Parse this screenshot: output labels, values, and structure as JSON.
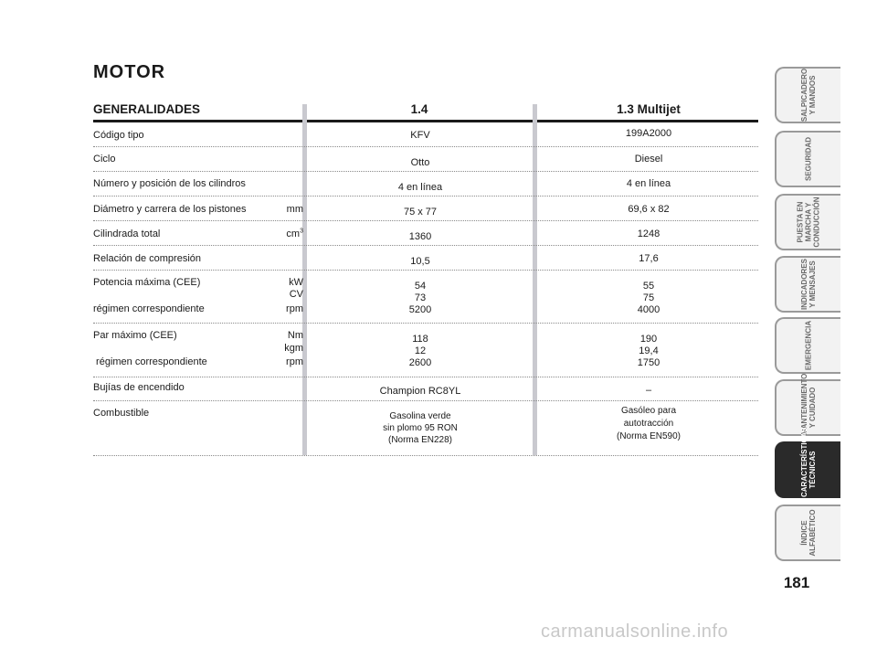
{
  "title": "MOTOR",
  "headers": {
    "general": "GENERALIDADES",
    "col1": "1.4",
    "col2": "1.3 Multijet"
  },
  "rows": [
    {
      "label": "Código tipo",
      "unit": "",
      "v1": "KFV",
      "v2": "199A2000"
    },
    {
      "label": "Ciclo",
      "unit": "",
      "v1": "Otto",
      "v2": "Diesel"
    },
    {
      "label": "Número y posición de los cilindros",
      "unit": "",
      "v1": "4 en línea",
      "v2": "4 en línea"
    },
    {
      "label": "Diámetro y carrera de los pistones",
      "unit": "mm",
      "v1": "75 x 77",
      "v2": "69,6 x 82"
    },
    {
      "label": "Cilindrada total",
      "unit": "cm",
      "unit_sup": "3",
      "v1": "1360",
      "v2": "1248"
    },
    {
      "label": "Relación de compresión",
      "unit": "",
      "v1": "10,5",
      "v2": "17,6"
    },
    {
      "label": "Potencia máxima (CEE)",
      "unit": "kW",
      "unit2": "CV",
      "v1": "54",
      "v1b": "73",
      "v2": "55",
      "v2b": "75",
      "label3": "régimen correspondiente",
      "unit3": "rpm",
      "v1c": "5200",
      "v2c": "4000"
    },
    {
      "label": "Par máximo (CEE)",
      "unit": "Nm",
      "unit2": "kgm",
      "v1": "118",
      "v1b": "12",
      "v2": "190",
      "v2b": "19,4",
      "label3": " régimen correspondiente",
      "unit3": "rpm",
      "v1c": "2600",
      "v2c": "1750"
    },
    {
      "label": "Bujías de encendido",
      "unit": "",
      "v1": "Champion RC8YL",
      "v2": "–"
    },
    {
      "label": "Combustible",
      "unit": "",
      "v1": "Gasolina verde",
      "v1b": "sin plomo 95 RON",
      "v1c": "(Norma EN228)",
      "v2": "Gasóleo para",
      "v2b": "autotracción",
      "v2c": "(Norma EN590)"
    }
  ],
  "tabs": [
    "SALPICADERO\nY MANDOS",
    "SEGURIDAD",
    "PUESTA EN\nMARCHA Y\nCONDUCCIÓN",
    "INDICADORES\nY MENSAJES",
    "EMERGENCIA",
    "MANTENIMIENTO\nY CUIDADO",
    "CARACTERÍSTICAS\nTÉCNICAS",
    "ÍNDICE\nALFABÉTICO"
  ],
  "active_tab": 6,
  "page_number": "181",
  "watermark": "carmanualsonline.info"
}
